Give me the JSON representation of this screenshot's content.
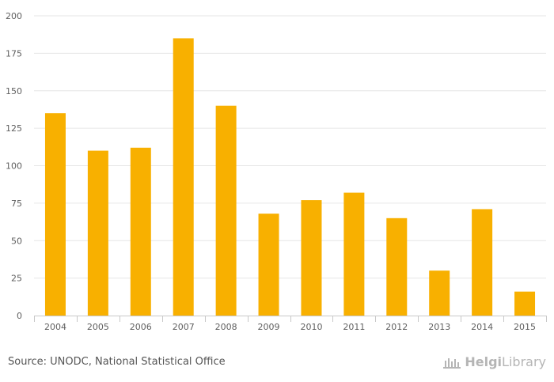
{
  "chart_data": {
    "type": "bar",
    "title": "",
    "xlabel": "",
    "ylabel": "",
    "categories": [
      "2004",
      "2005",
      "2006",
      "2007",
      "2008",
      "2009",
      "2010",
      "2011",
      "2012",
      "2013",
      "2014",
      "2015"
    ],
    "values": [
      135,
      110,
      112,
      185,
      140,
      68,
      77,
      82,
      65,
      30,
      71,
      16
    ],
    "ylim": [
      0,
      200
    ],
    "yticks": [
      "0",
      "25",
      "50",
      "75",
      "100",
      "125",
      "150",
      "175",
      "200"
    ],
    "grid": true,
    "bar_color": "#f8b000"
  },
  "footer": {
    "source": "Source: UNODC, National Statistical Office",
    "brand_bold": "Helgi",
    "brand_regular": "Library"
  }
}
